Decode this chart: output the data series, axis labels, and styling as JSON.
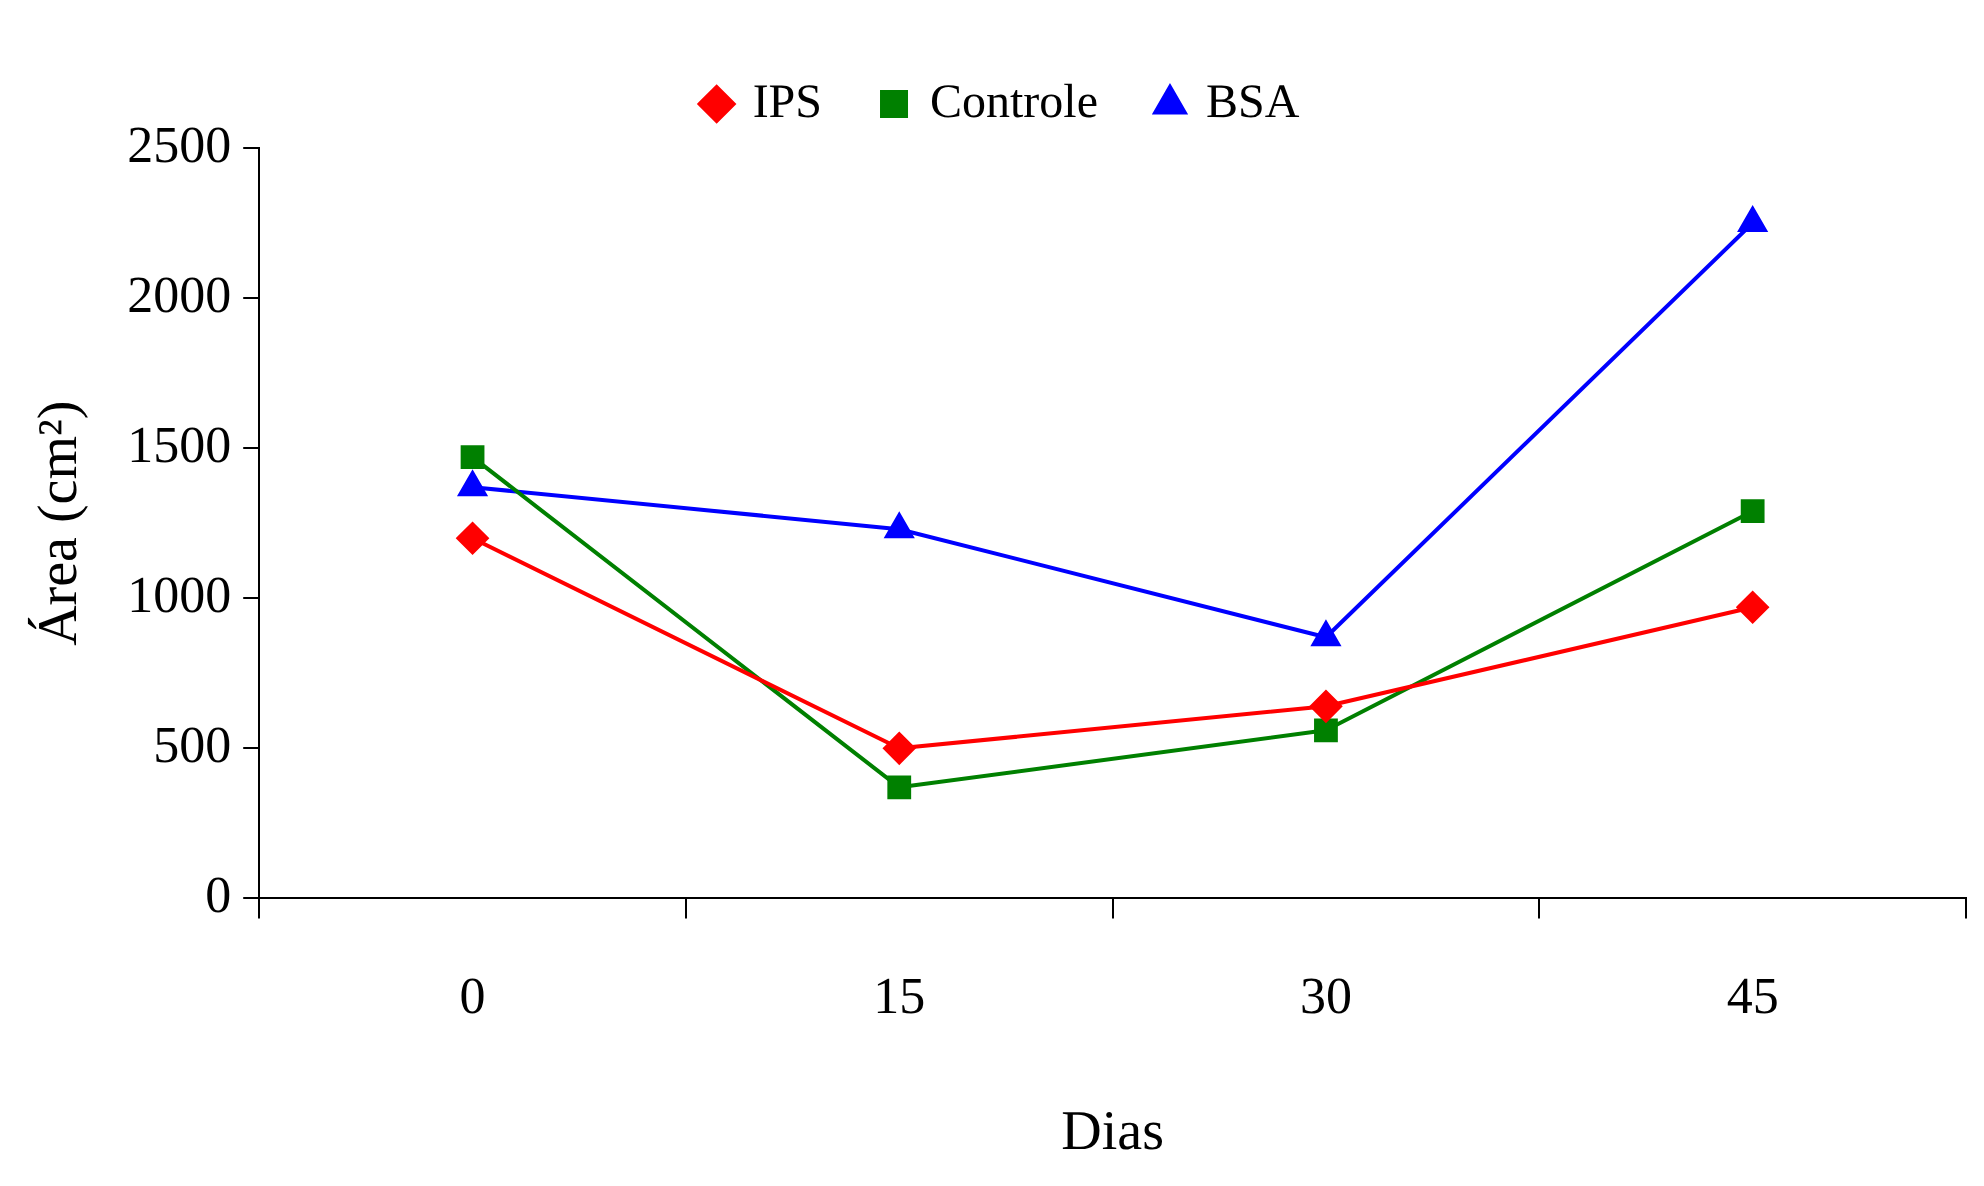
{
  "chart_data": {
    "type": "line",
    "xlabel": "Dias",
    "ylabel": "Área (cm²)",
    "categories": [
      "0",
      "15",
      "30",
      "45"
    ],
    "ylim": [
      0,
      2500
    ],
    "yticks": [
      0,
      500,
      1000,
      1500,
      2000,
      2500
    ],
    "grid": false,
    "legend": "top",
    "line_style": "solid",
    "series": [
      {
        "name": "IPS",
        "color": "#ff0000",
        "marker": "diamond",
        "values": [
          1200,
          500,
          640,
          970
        ]
      },
      {
        "name": "Controle",
        "color": "#008000",
        "marker": "square",
        "values": [
          1470,
          370,
          560,
          1290
        ]
      },
      {
        "name": "BSA",
        "color": "#0000ff",
        "marker": "triangle",
        "values": [
          1370,
          1230,
          870,
          2250
        ]
      }
    ]
  }
}
